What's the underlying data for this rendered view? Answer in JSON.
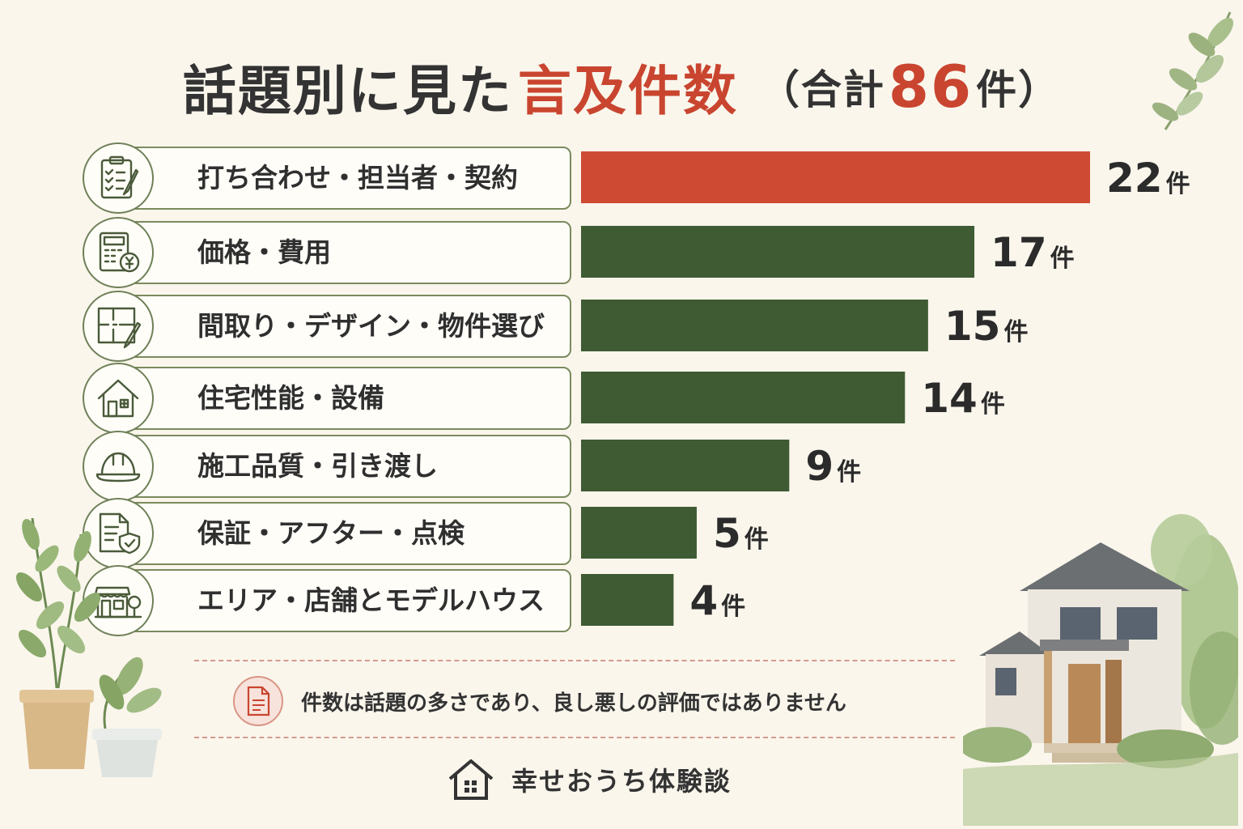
{
  "title": {
    "main": "話題別に見た",
    "accent": "言及件数",
    "paren_open": "（合計",
    "total": "86",
    "paren_close": "件）"
  },
  "unit": "件",
  "colors": {
    "top_bar": "#cf4a33",
    "bar": "#3f5b33",
    "accent": "#c9452f",
    "icon_stroke": "#4a5a3a"
  },
  "chart_data": {
    "type": "bar",
    "orientation": "horizontal",
    "title": "話題別に見た言及件数（合計86件）",
    "total": 86,
    "categories": [
      "打ち合わせ・担当者・契約",
      "価格・費用",
      "間取り・デザイン・物件選び",
      "住宅性能・設備",
      "施工品質・引き渡し",
      "保証・アフター・点検",
      "エリア・店舗とモデルハウス"
    ],
    "values": [
      22,
      17,
      15,
      14,
      9,
      5,
      4
    ],
    "value_labels": [
      "22",
      "17",
      "15",
      "14",
      "9",
      "5",
      "4"
    ],
    "xlim": [
      0,
      22
    ],
    "highlight_index": 0,
    "grid": false,
    "legend": "none"
  },
  "rows": [
    {
      "icon": "clipboard-checklist-icon"
    },
    {
      "icon": "calculator-yen-icon"
    },
    {
      "icon": "floorplan-pencil-icon"
    },
    {
      "icon": "house-icon"
    },
    {
      "icon": "hard-hat-icon"
    },
    {
      "icon": "document-shield-icon"
    },
    {
      "icon": "storefront-tree-icon"
    }
  ],
  "note": {
    "icon": "document-icon",
    "text": "件数は話題の多さであり、良し悪しの評価ではありません"
  },
  "brand": {
    "icon": "house-icon",
    "text": "幸せおうち体験談"
  }
}
